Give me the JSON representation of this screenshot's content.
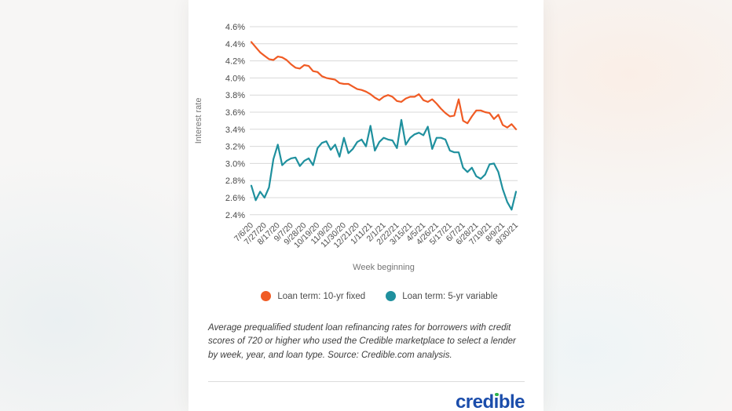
{
  "chart_data": {
    "type": "line",
    "title": "",
    "xlabel": "Week beginning",
    "ylabel": "Interest rate",
    "ylim": [
      2.3,
      4.7
    ],
    "y_ticks": [
      4.6,
      4.4,
      4.2,
      4.0,
      3.8,
      3.6,
      3.4,
      3.2,
      3.0,
      2.8,
      2.6,
      2.4
    ],
    "grid": true,
    "legend_position": "bottom",
    "x_label_every": 3,
    "categories": [
      "7/6/20",
      "7/13/20",
      "7/20/20",
      "7/27/20",
      "8/3/20",
      "8/10/20",
      "8/17/20",
      "8/24/20",
      "8/31/20",
      "9/7/20",
      "9/14/20",
      "9/21/20",
      "9/28/20",
      "10/5/20",
      "10/12/20",
      "10/19/20",
      "10/26/20",
      "11/2/20",
      "11/9/20",
      "11/16/20",
      "11/23/20",
      "11/30/20",
      "12/7/20",
      "12/14/20",
      "12/21/20",
      "12/28/20",
      "1/4/21",
      "1/11/21",
      "1/18/21",
      "1/25/21",
      "2/1/21",
      "2/8/21",
      "2/15/21",
      "2/22/21",
      "3/1/21",
      "3/8/21",
      "3/15/21",
      "3/22/21",
      "3/29/21",
      "4/5/21",
      "4/12/21",
      "4/19/21",
      "4/26/21",
      "5/3/21",
      "5/10/21",
      "5/17/21",
      "5/24/21",
      "5/31/21",
      "6/7/21",
      "6/14/21",
      "6/21/21",
      "6/28/21",
      "7/5/21",
      "7/12/21",
      "7/19/21",
      "7/26/21",
      "8/2/21",
      "8/9/21",
      "8/16/21",
      "8/23/21",
      "8/30/21"
    ],
    "series": [
      {
        "name": "Loan term: 10-yr fixed",
        "color": "#F05B24",
        "values": [
          4.42,
          4.36,
          4.3,
          4.26,
          4.22,
          4.21,
          4.25,
          4.24,
          4.21,
          4.16,
          4.12,
          4.11,
          4.15,
          4.14,
          4.08,
          4.07,
          4.02,
          4.0,
          3.99,
          3.98,
          3.94,
          3.93,
          3.93,
          3.9,
          3.87,
          3.86,
          3.84,
          3.81,
          3.77,
          3.74,
          3.78,
          3.8,
          3.78,
          3.73,
          3.72,
          3.76,
          3.78,
          3.78,
          3.81,
          3.74,
          3.72,
          3.75,
          3.7,
          3.64,
          3.59,
          3.55,
          3.56,
          3.75,
          3.5,
          3.47,
          3.55,
          3.62,
          3.62,
          3.6,
          3.59,
          3.52,
          3.57,
          3.45,
          3.42,
          3.46,
          3.4
        ]
      },
      {
        "name": "Loan term: 5-yr variable",
        "color": "#1F909E",
        "values": [
          2.74,
          2.57,
          2.67,
          2.6,
          2.72,
          3.05,
          3.22,
          2.98,
          3.03,
          3.06,
          3.07,
          2.97,
          3.03,
          3.06,
          2.98,
          3.18,
          3.24,
          3.26,
          3.16,
          3.22,
          3.08,
          3.3,
          3.12,
          3.17,
          3.25,
          3.28,
          3.2,
          3.44,
          3.15,
          3.25,
          3.3,
          3.28,
          3.27,
          3.18,
          3.51,
          3.22,
          3.3,
          3.34,
          3.36,
          3.33,
          3.43,
          3.17,
          3.3,
          3.3,
          3.28,
          3.15,
          3.13,
          3.13,
          2.95,
          2.9,
          2.95,
          2.85,
          2.82,
          2.87,
          2.99,
          3.0,
          2.9,
          2.7,
          2.55,
          2.46,
          2.67
        ]
      }
    ]
  },
  "legend": {
    "items": [
      {
        "label": "Loan term: 10-yr fixed",
        "color": "#F05B24"
      },
      {
        "label": "Loan term: 5-yr variable",
        "color": "#1F909E"
      }
    ]
  },
  "caption": {
    "text": "Average prequalified student loan refinancing rates for borrowers with credit scores of 720 or higher who used the Credible marketplace to select a lender by week, year, and loan type. Source: Credible.com analysis."
  },
  "brand": {
    "name": "credible",
    "before_i": "cred",
    "i_char": "ı",
    "after_i": "ble",
    "blue": "#1b4dab",
    "dot_green": "#2eb24c"
  }
}
